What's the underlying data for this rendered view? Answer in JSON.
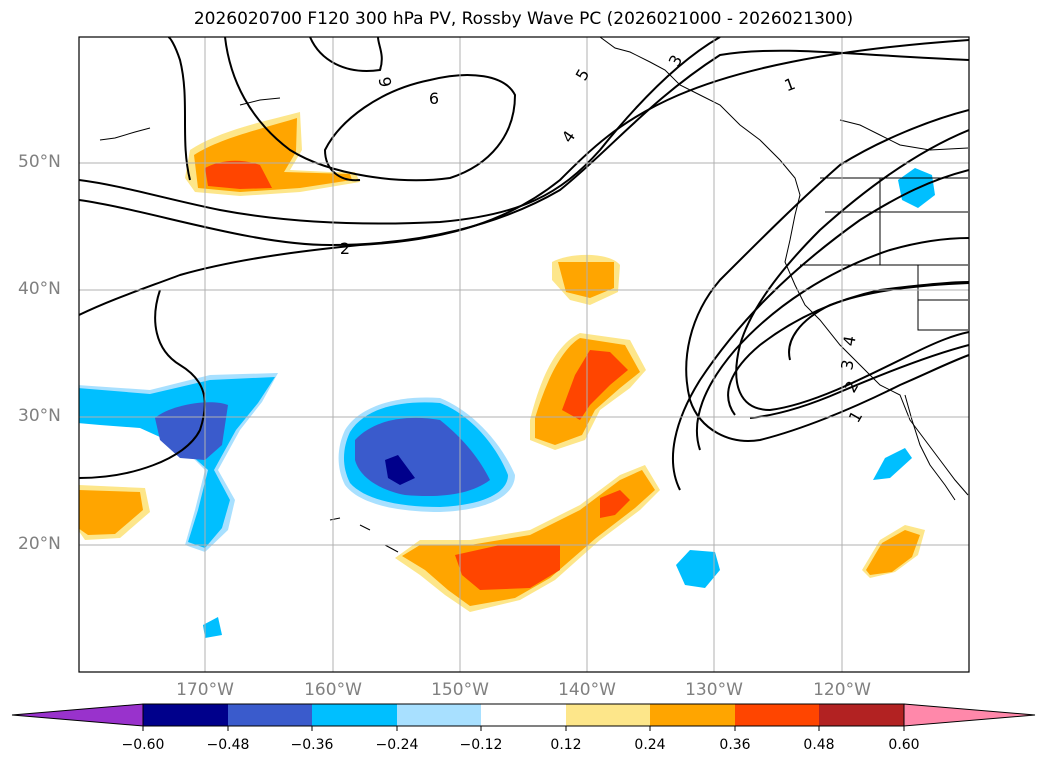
{
  "title": "2026020700 F120 300 hPa PV, Rossby Wave PC (2026021000 - 2026021300)",
  "latitude_labels": [
    "50°N",
    "40°N",
    "30°N",
    "20°N"
  ],
  "longitude_labels": [
    "170°W",
    "160°W",
    "150°W",
    "140°W",
    "130°W",
    "120°W"
  ],
  "contour_labels": [
    "6",
    "6",
    "5",
    "4",
    "3",
    "2",
    "1",
    "4",
    "3",
    "2",
    "1"
  ],
  "colorbar": {
    "tick_labels": [
      "−0.60",
      "−0.48",
      "−0.36",
      "−0.24",
      "−0.12",
      "0.12",
      "0.24",
      "0.36",
      "0.48",
      "0.60"
    ],
    "colors": [
      "#9932cc",
      "#00008b",
      "#3a5bcc",
      "#00bfff",
      "#a8e0ff",
      "#ffffff",
      "#fde68a",
      "#ffa500",
      "#ff4500",
      "#b22222",
      "#ff88aa"
    ]
  },
  "colors": {
    "contour": "#000000",
    "coast": "#000000",
    "grid": "#b0b0b0",
    "axis_label": "#808080"
  }
}
